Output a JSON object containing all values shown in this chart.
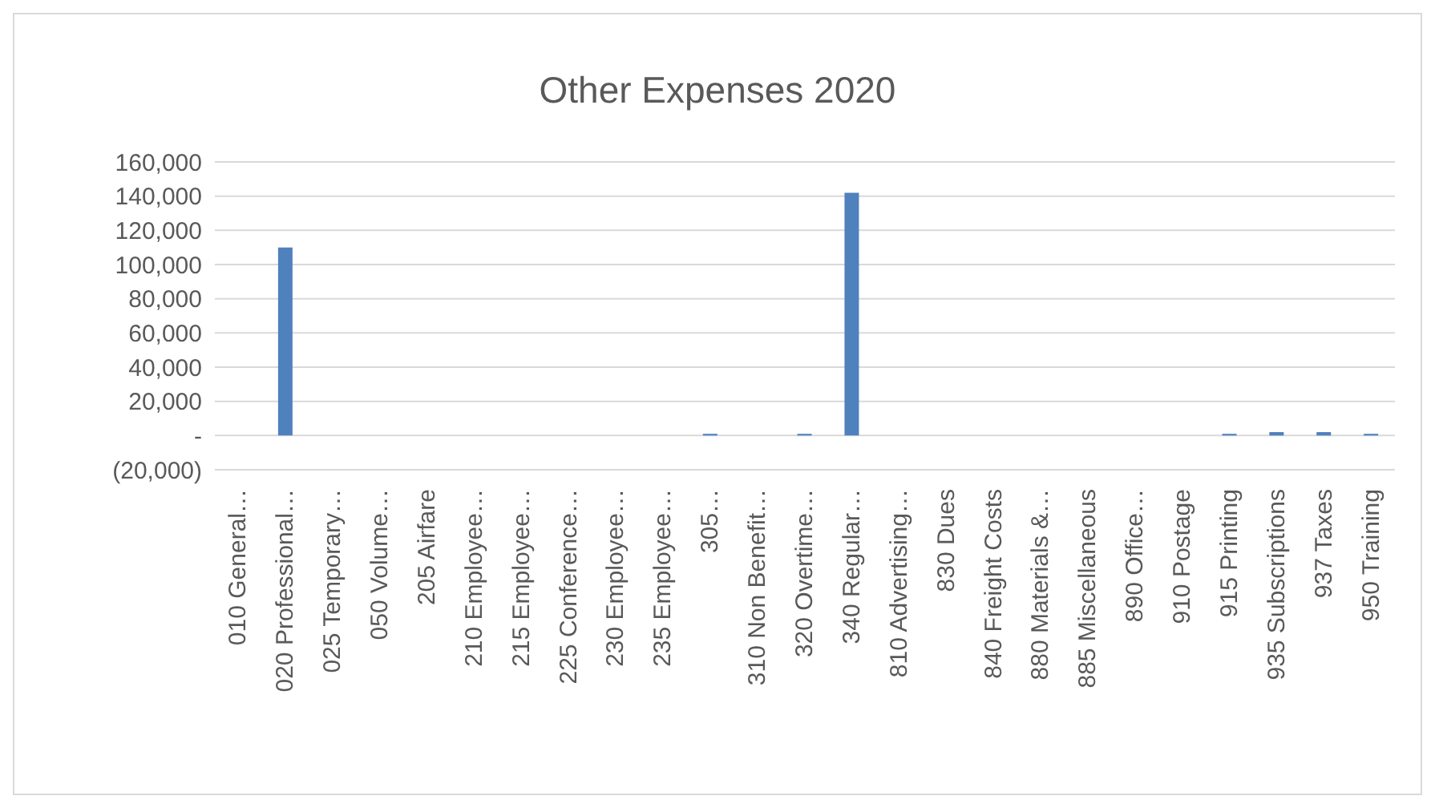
{
  "chart_data": {
    "type": "bar",
    "title": "Other Expenses 2020",
    "categories": [
      "010 General…",
      "020 Professional…",
      "025 Temporary…",
      "050 Volume…",
      "205 Airfare",
      "210 Employee…",
      "215 Employee…",
      "225 Conference…",
      "230 Employee…",
      "235 Employee…",
      "305…",
      "310 Non Benefit…",
      "320 Overtime…",
      "340 Regular…",
      "810 Advertising…",
      "830 Dues",
      "840 Freight Costs",
      "880 Materials &…",
      "885 Miscellaneous",
      "890 Office…",
      "910 Postage",
      "915 Printing",
      "935 Subscriptions",
      "937 Taxes",
      "950 Training"
    ],
    "values": [
      0,
      110000,
      0,
      0,
      0,
      0,
      0,
      0,
      0,
      0,
      1000,
      0,
      1000,
      142000,
      0,
      0,
      0,
      0,
      0,
      0,
      0,
      1000,
      2000,
      2000,
      1000
    ],
    "color": "#4f81bd",
    "ylim": [
      -20000,
      160000
    ],
    "yticks": [
      {
        "value": -20000,
        "label": "(20,000)"
      },
      {
        "value": 0,
        "label": "-"
      },
      {
        "value": 20000,
        "label": "20,000"
      },
      {
        "value": 40000,
        "label": "40,000"
      },
      {
        "value": 60000,
        "label": "60,000"
      },
      {
        "value": 80000,
        "label": "80,000"
      },
      {
        "value": 100000,
        "label": "100,000"
      },
      {
        "value": 120000,
        "label": "120,000"
      },
      {
        "value": 140000,
        "label": "140,000"
      },
      {
        "value": 160000,
        "label": "160,000"
      }
    ],
    "grid": "y"
  }
}
